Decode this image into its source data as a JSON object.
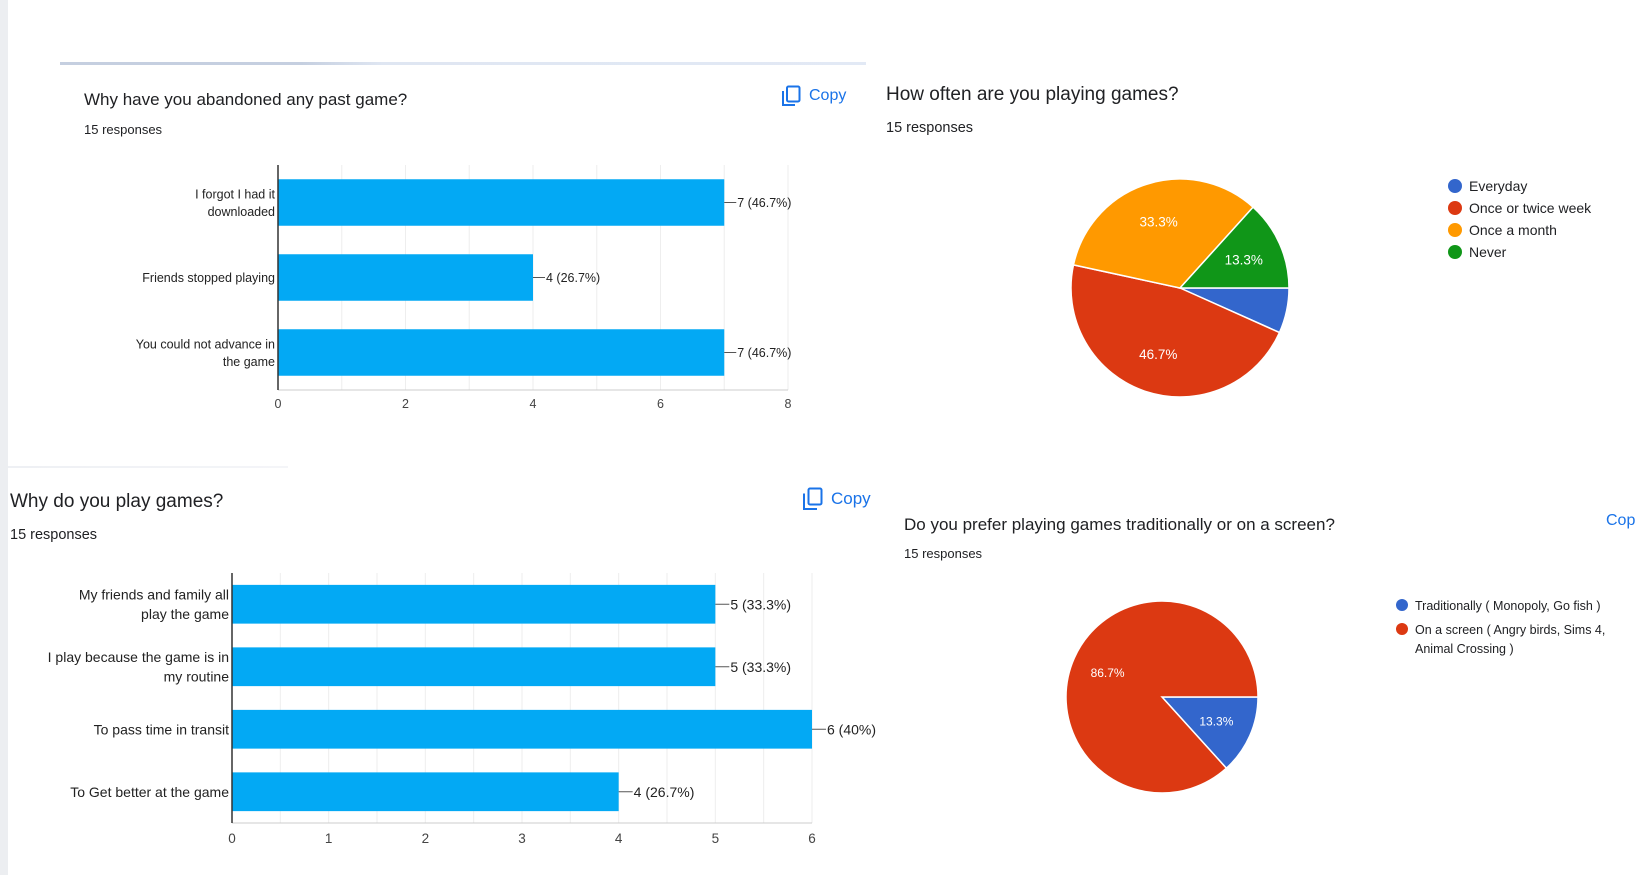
{
  "copy_label": "Copy",
  "charts": [
    {
      "question": "Why have you abandoned any past game?",
      "responses": "15 responses",
      "chart_data": {
        "type": "bar",
        "orientation": "horizontal",
        "categories": [
          "I forgot I had it downloaded",
          "Friends stopped playing",
          "You could not advance in the game"
        ],
        "values": [
          7,
          4,
          7
        ],
        "data_labels": [
          "7 (46.7%)",
          "4 (26.7%)",
          "7 (46.7%)"
        ],
        "xlim": [
          0,
          8
        ],
        "xticks": [
          0,
          2,
          4,
          6,
          8
        ],
        "grid": true,
        "bar_color": "#03a9f4"
      }
    },
    {
      "question": "How often are you playing games?",
      "responses": "15 responses",
      "chart_data": {
        "type": "pie",
        "labels": [
          "Everyday",
          "Once or twice week",
          "Once a month",
          "Never"
        ],
        "values": [
          6.7,
          46.7,
          33.3,
          13.3
        ],
        "slice_labels": [
          "",
          "46.7%",
          "33.3%",
          "13.3%"
        ],
        "colors": [
          "#3366cc",
          "#dc3912",
          "#ff9900",
          "#109618"
        ],
        "legend": "right"
      }
    },
    {
      "question": "Why do you play games?",
      "responses": "15 responses",
      "chart_data": {
        "type": "bar",
        "orientation": "horizontal",
        "categories": [
          "My friends and family all play the game",
          "I play because the game is in my routine",
          "To pass time in transit",
          "To Get better at the game"
        ],
        "values": [
          5,
          5,
          6,
          4
        ],
        "data_labels": [
          "5 (33.3%)",
          "5 (33.3%)",
          "6 (40%)",
          "4 (26.7%)"
        ],
        "xlim": [
          0,
          6
        ],
        "xticks": [
          0,
          1,
          2,
          3,
          4,
          5,
          6
        ],
        "grid": true,
        "bar_color": "#03a9f4"
      }
    },
    {
      "question": "Do you prefer playing games traditionally or on a screen?",
      "responses": "15 responses",
      "chart_data": {
        "type": "pie",
        "labels": [
          "Traditionally ( Monopoly, Go fish )",
          "On a screen ( Angry birds, Sims 4, Animal Crossing )"
        ],
        "values": [
          13.3,
          86.7
        ],
        "slice_labels": [
          "13.3%",
          "86.7%"
        ],
        "colors": [
          "#3366cc",
          "#dc3912"
        ],
        "legend": "right"
      }
    }
  ]
}
